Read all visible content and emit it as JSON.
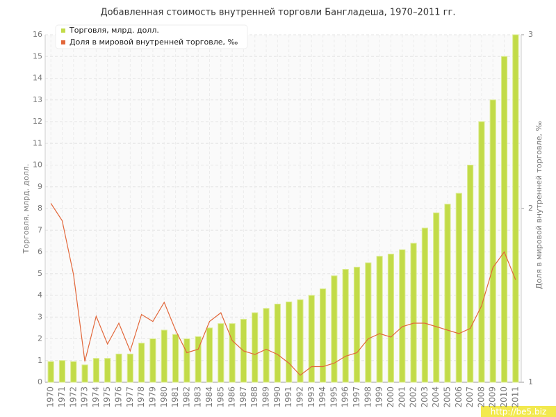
{
  "chart_data": {
    "type": "bar",
    "title": "Добавленная стоимость внутренней торговли Бангладеша, 1970–2011 гг.",
    "y_label": "Торговля, млрд. долл.",
    "y2_label": "Доля в мировой внутренней торговле, ‰",
    "watermark": "http://be5.biz",
    "categories": [
      "1970",
      "1971",
      "1972",
      "1973",
      "1974",
      "1975",
      "1976",
      "1977",
      "1978",
      "1979",
      "1980",
      "1981",
      "1982",
      "1983",
      "1984",
      "1985",
      "1986",
      "1987",
      "1988",
      "1989",
      "1990",
      "1991",
      "1992",
      "1993",
      "1994",
      "1995",
      "1996",
      "1997",
      "1998",
      "1999",
      "2000",
      "2001",
      "2002",
      "2003",
      "2004",
      "2005",
      "2006",
      "2007",
      "2008",
      "2009",
      "2010",
      "2011"
    ],
    "series": [
      {
        "name": "Торговля, млрд. долл.",
        "type": "bar",
        "color": "#c2db48",
        "values": [
          0.95,
          1.0,
          0.95,
          0.8,
          1.1,
          1.1,
          1.3,
          1.3,
          1.8,
          2.0,
          2.4,
          2.2,
          2.0,
          2.1,
          2.5,
          2.7,
          2.7,
          2.9,
          3.2,
          3.4,
          3.6,
          3.7,
          3.8,
          4.0,
          4.3,
          4.9,
          5.2,
          5.3,
          5.5,
          5.8,
          5.9,
          6.1,
          6.4,
          7.1,
          7.8,
          8.2,
          8.7,
          10,
          12,
          13,
          15,
          16
        ]
      },
      {
        "name": "Доля в мировой внутренней торговле, ‰",
        "type": "line",
        "axis": "y2",
        "color": "#e2673a",
        "values": [
          2.03,
          1.93,
          1.62,
          1.12,
          1.38,
          1.22,
          1.34,
          1.18,
          1.39,
          1.35,
          1.46,
          1.3,
          1.17,
          1.19,
          1.35,
          1.4,
          1.24,
          1.18,
          1.16,
          1.19,
          1.16,
          1.11,
          1.04,
          1.09,
          1.09,
          1.11,
          1.15,
          1.17,
          1.25,
          1.28,
          1.26,
          1.32,
          1.34,
          1.34,
          1.32,
          1.3,
          1.28,
          1.31,
          1.44,
          1.66,
          1.75,
          1.59
        ]
      }
    ],
    "ylim": [
      0,
      16
    ],
    "yticks": [
      0,
      1,
      2,
      3,
      4,
      5,
      6,
      7,
      8,
      9,
      10,
      11,
      12,
      13,
      14,
      15,
      16
    ],
    "y2lim": [
      1,
      3
    ],
    "y2ticks": [
      1,
      2,
      3
    ],
    "grid": true,
    "legend": "top-left"
  }
}
